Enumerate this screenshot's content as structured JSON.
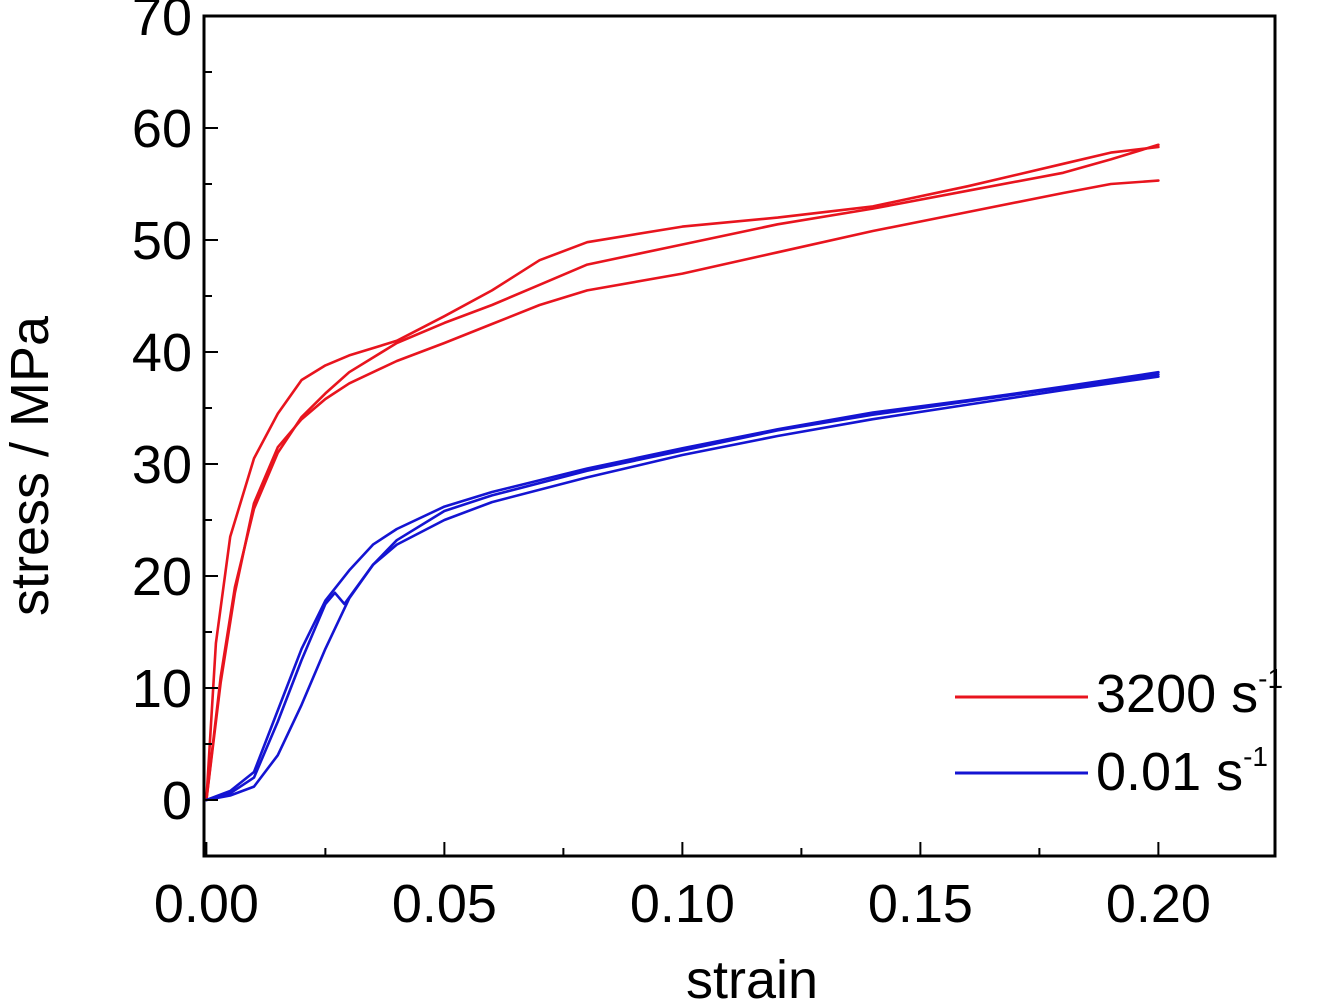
{
  "chart_data": {
    "type": "line",
    "title": "",
    "xlabel": "strain",
    "ylabel": "stress / MPa",
    "xlim": [
      -0.0005,
      0.2245
    ],
    "ylim": [
      -5,
      70
    ],
    "x_ticks": [
      0.0,
      0.05,
      0.1,
      0.15,
      0.2
    ],
    "x_tick_labels": [
      "0.00",
      "0.05",
      "0.10",
      "0.15",
      "0.20"
    ],
    "y_ticks": [
      0,
      10,
      20,
      30,
      40,
      50,
      60,
      70
    ],
    "y_tick_labels": [
      "0",
      "10",
      "20",
      "30",
      "40",
      "50",
      "60",
      "70"
    ],
    "grid": false,
    "legend_position": "bottom-right",
    "colors": {
      "red": "#e8141e",
      "blue": "#1414d2"
    },
    "legend": [
      {
        "label": "3200 s",
        "sup": "-1",
        "color": "#e8141e"
      },
      {
        "label": "0.01 s",
        "sup": "-1",
        "color": "#1414d2"
      }
    ],
    "series": [
      {
        "group": "3200 s-1",
        "color": "#e8141e",
        "x": [
          0.0,
          0.002,
          0.005,
          0.01,
          0.015,
          0.02,
          0.025,
          0.03,
          0.04,
          0.05,
          0.06,
          0.07,
          0.08,
          0.1,
          0.12,
          0.14,
          0.16,
          0.18,
          0.19,
          0.2
        ],
        "y": [
          0.0,
          14.0,
          23.5,
          30.5,
          34.5,
          37.5,
          38.8,
          39.7,
          41.0,
          43.2,
          45.5,
          48.2,
          49.8,
          51.2,
          52.0,
          53.0,
          54.8,
          56.8,
          57.8,
          58.3
        ]
      },
      {
        "group": "3200 s-1",
        "color": "#e8141e",
        "x": [
          0.0,
          0.003,
          0.006,
          0.01,
          0.015,
          0.02,
          0.025,
          0.03,
          0.04,
          0.05,
          0.06,
          0.07,
          0.08,
          0.1,
          0.12,
          0.14,
          0.16,
          0.18,
          0.19,
          0.2
        ],
        "y": [
          0.0,
          11.0,
          19.0,
          26.0,
          31.0,
          34.2,
          36.3,
          38.2,
          40.8,
          42.6,
          44.2,
          46.0,
          47.8,
          49.6,
          51.4,
          52.8,
          54.4,
          56.0,
          57.2,
          58.5
        ]
      },
      {
        "group": "3200 s-1",
        "color": "#e8141e",
        "x": [
          0.0,
          0.003,
          0.006,
          0.01,
          0.015,
          0.02,
          0.025,
          0.03,
          0.04,
          0.05,
          0.06,
          0.07,
          0.08,
          0.1,
          0.12,
          0.14,
          0.16,
          0.18,
          0.19,
          0.2
        ],
        "y": [
          0.0,
          10.5,
          18.5,
          26.5,
          31.5,
          34.0,
          35.8,
          37.2,
          39.2,
          40.8,
          42.5,
          44.2,
          45.5,
          47.0,
          48.9,
          50.8,
          52.5,
          54.2,
          55.0,
          55.3
        ]
      },
      {
        "group": "0.01 s-1",
        "color": "#1414d2",
        "x": [
          0.0,
          0.005,
          0.01,
          0.015,
          0.02,
          0.025,
          0.03,
          0.035,
          0.04,
          0.05,
          0.06,
          0.08,
          0.1,
          0.12,
          0.14,
          0.16,
          0.18,
          0.2
        ],
        "y": [
          0.0,
          0.8,
          2.5,
          8.0,
          13.5,
          17.8,
          20.5,
          22.8,
          24.2,
          26.2,
          27.5,
          29.6,
          31.4,
          33.1,
          34.6,
          35.7,
          36.9,
          38.2
        ]
      },
      {
        "group": "0.01 s-1",
        "color": "#1414d2",
        "x": [
          0.0,
          0.005,
          0.01,
          0.015,
          0.02,
          0.025,
          0.027,
          0.029,
          0.035,
          0.04,
          0.05,
          0.06,
          0.08,
          0.1,
          0.12,
          0.14,
          0.16,
          0.18,
          0.2
        ],
        "y": [
          0.0,
          0.6,
          2.0,
          7.0,
          12.5,
          17.5,
          18.5,
          17.5,
          21.0,
          23.2,
          25.8,
          27.2,
          29.4,
          31.2,
          33.0,
          34.4,
          35.6,
          36.8,
          38.0
        ]
      },
      {
        "group": "0.01 s-1",
        "color": "#1414d2",
        "x": [
          0.0,
          0.005,
          0.01,
          0.015,
          0.02,
          0.025,
          0.03,
          0.035,
          0.04,
          0.05,
          0.06,
          0.08,
          0.1,
          0.12,
          0.14,
          0.16,
          0.18,
          0.2
        ],
        "y": [
          0.0,
          0.4,
          1.2,
          4.0,
          8.5,
          13.5,
          18.0,
          21.0,
          22.8,
          25.0,
          26.6,
          28.8,
          30.8,
          32.5,
          34.0,
          35.3,
          36.6,
          37.8
        ]
      }
    ]
  }
}
